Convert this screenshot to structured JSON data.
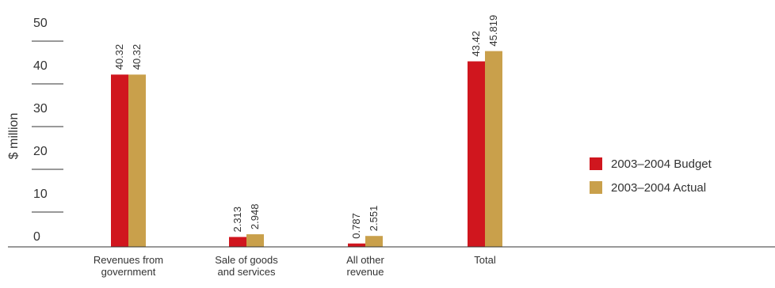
{
  "chart_data": {
    "type": "bar",
    "title": "",
    "xlabel": "",
    "ylabel": "$ million",
    "ylim": [
      0,
      50
    ],
    "yticks": [
      0,
      10,
      20,
      30,
      40,
      50
    ],
    "grid": false,
    "legend_position": "right",
    "categories": [
      [
        "Revenues from",
        "government"
      ],
      [
        "Sale of goods",
        "and services"
      ],
      [
        "All other",
        "revenue"
      ],
      [
        "Total"
      ]
    ],
    "series": [
      {
        "name": "2003–2004 Budget",
        "color": "#d0161e",
        "values": [
          40.32,
          2.313,
          0.787,
          43.42
        ]
      },
      {
        "name": "2003–2004 Actual",
        "color": "#c9a04b",
        "values": [
          40.32,
          2.948,
          2.551,
          45.819
        ]
      }
    ]
  }
}
